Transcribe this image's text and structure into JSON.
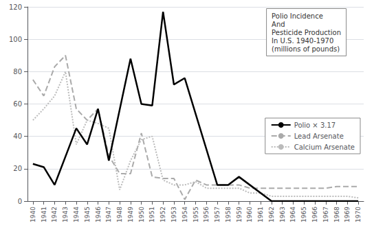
{
  "chart_data": {
    "type": "line",
    "title": "Polio Incidence\nAnd\nPesticide Production\nIn U.S. 1940-1970\n(millions of pounds)",
    "x": [
      1940,
      1941,
      1942,
      1943,
      1944,
      1945,
      1946,
      1947,
      1948,
      1949,
      1950,
      1951,
      1952,
      1953,
      1954,
      1955,
      1956,
      1957,
      1958,
      1959,
      1960,
      1961,
      1962,
      1963,
      1964,
      1965,
      1966,
      1967,
      1968,
      1969,
      1970
    ],
    "series": [
      {
        "name": "Polio × 3.17",
        "color": "#000000",
        "line_style": "solid",
        "values": [
          23,
          21,
          10,
          null,
          45,
          35,
          57,
          25,
          null,
          88,
          60,
          59,
          117,
          72,
          76,
          null,
          null,
          10,
          10,
          15,
          null,
          null,
          0,
          0,
          0,
          0,
          0,
          0,
          0,
          0,
          0
        ]
      },
      {
        "name": "Lead Arsenate",
        "color": "#aaaaaa",
        "line_style": "dashed",
        "values": [
          75,
          65,
          83,
          90,
          57,
          50,
          57,
          28,
          17,
          17,
          42,
          15,
          14,
          14,
          1,
          13,
          10,
          10,
          10,
          10,
          8,
          8,
          8,
          8,
          8,
          8,
          8,
          8,
          9,
          9,
          9
        ]
      },
      {
        "name": "Calcium Arsenate",
        "color": "#bbbbbb",
        "line_style": "dotted",
        "values": [
          50,
          57,
          65,
          80,
          35,
          50,
          48,
          45,
          7,
          25,
          38,
          40,
          13,
          10,
          10,
          12,
          8,
          8,
          8,
          8,
          5,
          5,
          3,
          3,
          3,
          3,
          3,
          3,
          3,
          3,
          2
        ]
      }
    ],
    "xlim": [
      1939.5,
      1970.5
    ],
    "xticks": [
      1940,
      1941,
      1942,
      1943,
      1944,
      1945,
      1946,
      1947,
      1948,
      1949,
      1950,
      1951,
      1952,
      1953,
      1954,
      1955,
      1956,
      1957,
      1958,
      1959,
      1960,
      1961,
      1962,
      1963,
      1964,
      1965,
      1966,
      1967,
      1968,
      1969,
      1970
    ],
    "ylim": [
      0,
      120
    ],
    "yticks": [
      0,
      20,
      40,
      60,
      80,
      100,
      120
    ],
    "grid": "y",
    "legend": "right"
  }
}
